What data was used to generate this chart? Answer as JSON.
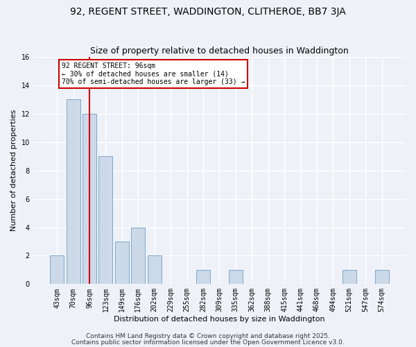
{
  "title": "92, REGENT STREET, WADDINGTON, CLITHEROE, BB7 3JA",
  "subtitle": "Size of property relative to detached houses in Waddington",
  "xlabel": "Distribution of detached houses by size in Waddington",
  "ylabel": "Number of detached properties",
  "categories": [
    "43sqm",
    "70sqm",
    "96sqm",
    "123sqm",
    "149sqm",
    "176sqm",
    "202sqm",
    "229sqm",
    "255sqm",
    "282sqm",
    "309sqm",
    "335sqm",
    "362sqm",
    "388sqm",
    "415sqm",
    "441sqm",
    "468sqm",
    "494sqm",
    "521sqm",
    "547sqm",
    "574sqm"
  ],
  "values": [
    2,
    13,
    12,
    9,
    3,
    4,
    2,
    0,
    0,
    1,
    0,
    1,
    0,
    0,
    0,
    0,
    0,
    0,
    1,
    0,
    1
  ],
  "bar_color": "#ccd9e8",
  "bar_edge_color": "#7da7c9",
  "highlight_bar_index": 2,
  "highlight_color": "#cc0000",
  "ylim": [
    0,
    16
  ],
  "yticks": [
    0,
    2,
    4,
    6,
    8,
    10,
    12,
    14,
    16
  ],
  "annotation_text": "92 REGENT STREET: 96sqm\n← 30% of detached houses are smaller (14)\n70% of semi-detached houses are larger (33) →",
  "annotation_box_color": "#cc0000",
  "footer1": "Contains HM Land Registry data © Crown copyright and database right 2025.",
  "footer2": "Contains public sector information licensed under the Open Government Licence v3.0.",
  "bg_color": "#eef2f8",
  "plot_bg_color": "#eef2f8",
  "grid_color": "#ffffff",
  "title_fontsize": 10,
  "subtitle_fontsize": 9,
  "label_fontsize": 8,
  "tick_fontsize": 7,
  "footer_fontsize": 6.5
}
